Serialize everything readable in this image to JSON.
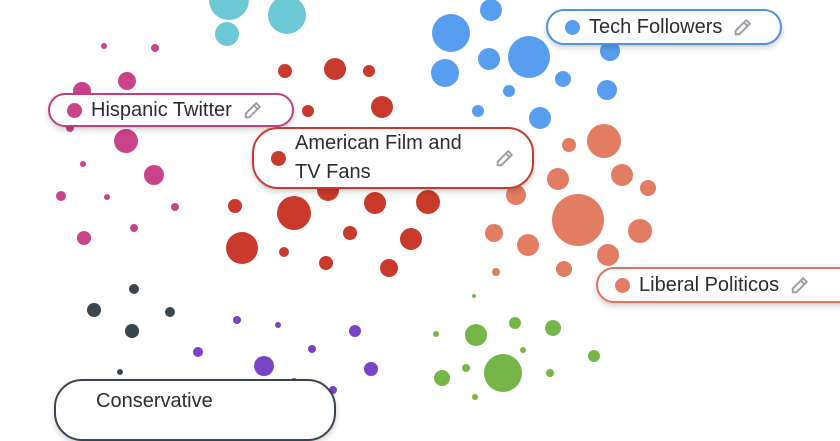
{
  "colors": {
    "tech": "#579ef0",
    "hispanic": "#c8438a",
    "film": "#c93a2c",
    "liberal": "#e27c63",
    "conservative": "#3a4550",
    "purple": "#7a42c4",
    "green": "#76b547",
    "cyan": "#6dc8d5",
    "text": "#2b2b33"
  },
  "clusters": [
    {
      "id": "tech",
      "label": "Tech Followers",
      "color": "#579ef0",
      "icon": "pencil-icon"
    },
    {
      "id": "hispanic",
      "label": "Hispanic Twitter",
      "color": "#c8438a",
      "icon": "pencil-icon"
    },
    {
      "id": "film",
      "label": "American Film and TV Fans",
      "color": "#c93a2c",
      "icon": "pencil-icon"
    },
    {
      "id": "liberal",
      "label": "Liberal Politicos",
      "color": "#e27c63",
      "icon": "pencil-icon"
    },
    {
      "id": "conservative",
      "label": "Conservative",
      "color": "#3a4550",
      "icon": "pencil-icon"
    }
  ]
}
